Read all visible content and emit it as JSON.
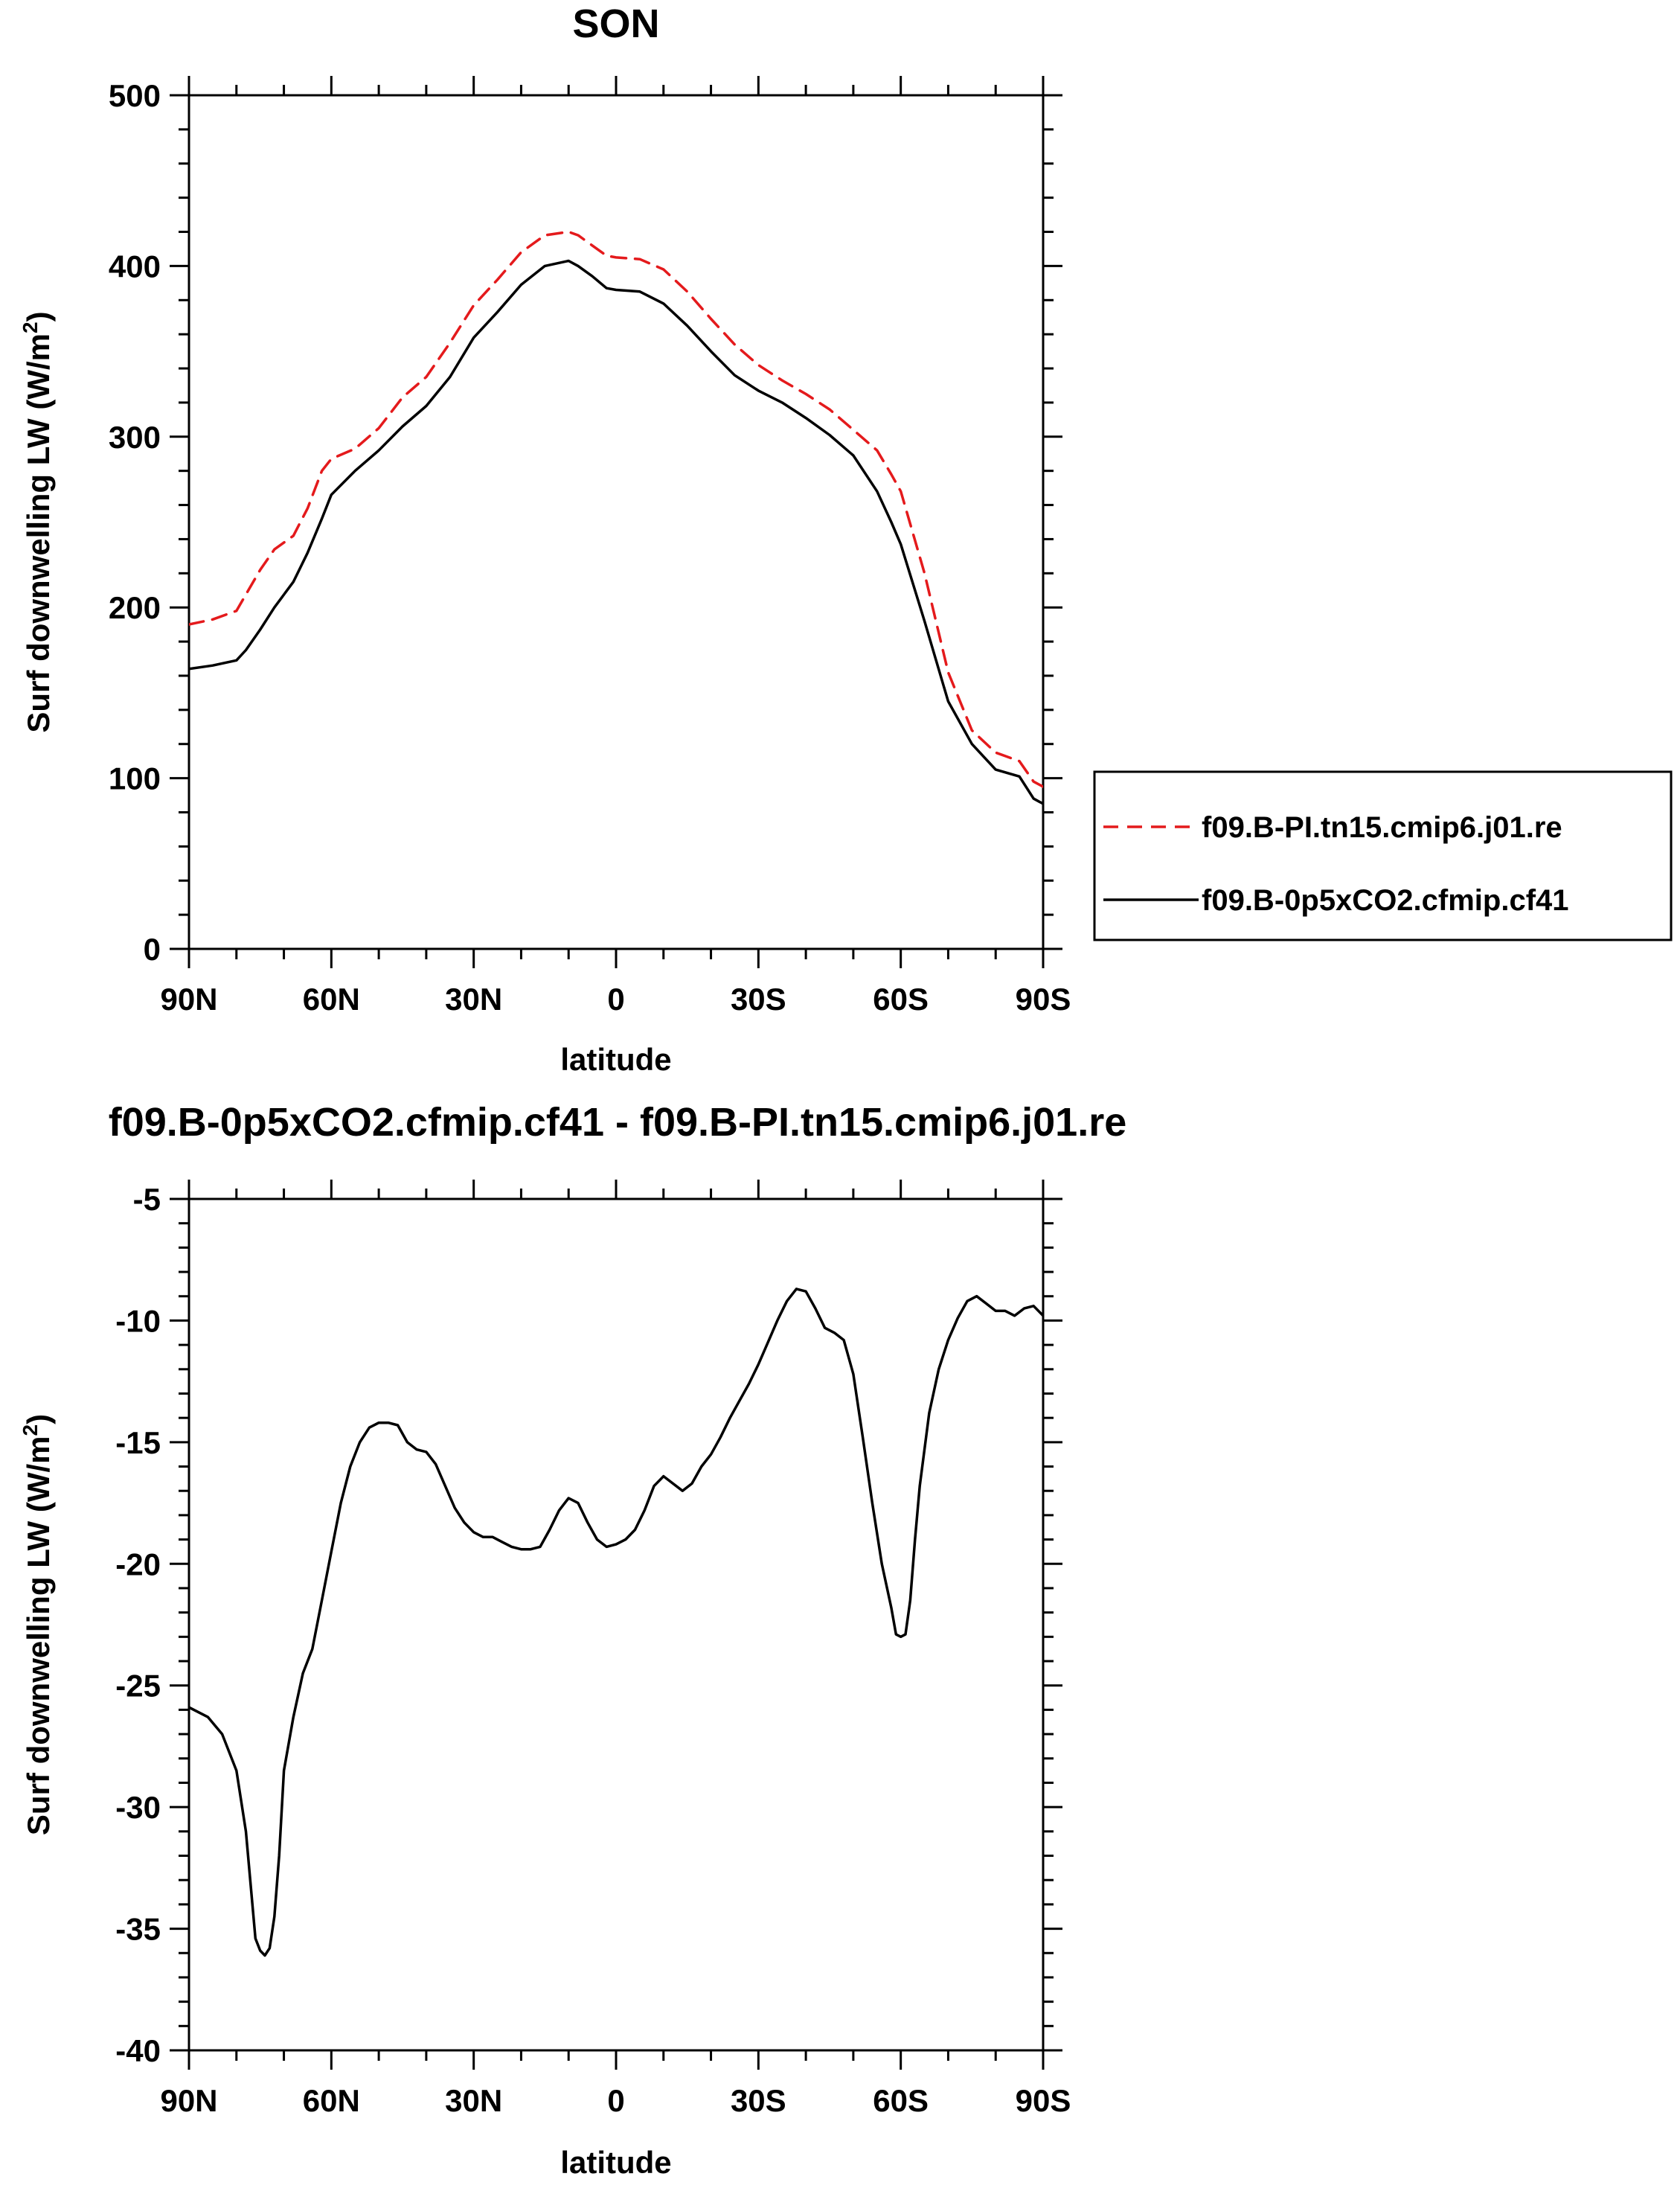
{
  "chart_data": [
    {
      "type": "line",
      "title": "SON",
      "xlabel": "latitude",
      "ylabel": "Surf downwelling LW (W/m²)",
      "ylabel_text": "Surf downwelling LW (W/m",
      "ylabel_sup": "2",
      "ylabel_close": ")",
      "xlim": [
        90,
        -90
      ],
      "ylim": [
        0,
        500
      ],
      "xticks": [
        90,
        60,
        30,
        0,
        -30,
        -60,
        -90
      ],
      "xtick_labels": [
        "90N",
        "60N",
        "30N",
        "0",
        "30S",
        "60S",
        "90S"
      ],
      "yticks": [
        0,
        100,
        200,
        300,
        400,
        500
      ],
      "ytick_labels": [
        "0",
        "100",
        "200",
        "300",
        "400",
        "500"
      ],
      "legend_position": "outside-right",
      "series": [
        {
          "name": "f09.B-PI.tn15.cmip6.j01.re",
          "color": "#e41a1c",
          "dash": "dashed",
          "x": [
            90,
            85,
            80,
            75,
            72,
            68,
            65,
            62,
            60,
            55,
            50,
            45,
            40,
            35,
            30,
            25,
            20,
            15,
            10,
            8,
            5,
            2,
            0,
            -5,
            -10,
            -15,
            -20,
            -25,
            -30,
            -35,
            -40,
            -45,
            -50,
            -55,
            -58,
            -60,
            -65,
            -70,
            -75,
            -80,
            -85,
            -88,
            -90
          ],
          "y": [
            190,
            193,
            198,
            222,
            234,
            242,
            258,
            280,
            287,
            293,
            305,
            323,
            335,
            355,
            377,
            392,
            408,
            418,
            420,
            418,
            412,
            406,
            405,
            404,
            398,
            385,
            369,
            354,
            342,
            333,
            325,
            316,
            304,
            292,
            278,
            268,
            220,
            162,
            128,
            115,
            110,
            98,
            95
          ]
        },
        {
          "name": "f09.B-0p5xCO2.cfmip.cf41",
          "color": "#000000",
          "dash": "solid",
          "x": [
            90,
            85,
            80,
            78,
            75,
            72,
            68,
            65,
            62,
            60,
            55,
            50,
            45,
            40,
            35,
            30,
            25,
            20,
            15,
            10,
            8,
            5,
            2,
            0,
            -5,
            -10,
            -15,
            -20,
            -25,
            -30,
            -35,
            -40,
            -45,
            -50,
            -55,
            -58,
            -60,
            -65,
            -70,
            -75,
            -80,
            -85,
            -88,
            -90
          ],
          "y": [
            164,
            166,
            169,
            175,
            187,
            200,
            215,
            232,
            252,
            266,
            280,
            292,
            306,
            318,
            335,
            358,
            373,
            389,
            400,
            403,
            400,
            394,
            387,
            386,
            385,
            378,
            365,
            350,
            336,
            327,
            320,
            311,
            301,
            289,
            268,
            250,
            237,
            192,
            145,
            120,
            105,
            101,
            88,
            85
          ]
        }
      ]
    },
    {
      "type": "line",
      "title": "f09.B-0p5xCO2.cfmip.cf41 - f09.B-PI.tn15.cmip6.j01.re",
      "xlabel": "latitude",
      "ylabel": "Surf downwelling LW (W/m²)",
      "ylabel_text": "Surf downwelling LW (W/m",
      "ylabel_sup": "2",
      "ylabel_close": ")",
      "xlim": [
        90,
        -90
      ],
      "ylim": [
        -40,
        -5
      ],
      "xticks": [
        90,
        60,
        30,
        0,
        -30,
        -60,
        -90
      ],
      "xtick_labels": [
        "90N",
        "60N",
        "30N",
        "0",
        "30S",
        "60S",
        "90S"
      ],
      "yticks": [
        -40,
        -35,
        -30,
        -25,
        -20,
        -15,
        -10,
        -5
      ],
      "ytick_labels": [
        "-40",
        "-35",
        "-30",
        "-25",
        "-20",
        "-15",
        "-10",
        "-5"
      ],
      "series": [
        {
          "name": "f09.B-0p5xCO2.cfmip.cf41 - f09.B-PI.tn15.cmip6.j01.re",
          "color": "#000000",
          "dash": "solid",
          "x": [
            90,
            86,
            83,
            80,
            78,
            77,
            76,
            75,
            74,
            73,
            72,
            71,
            70,
            68,
            66,
            64,
            62,
            60,
            58,
            56,
            54,
            52,
            50,
            48,
            46,
            44,
            42,
            40,
            38,
            36,
            34,
            32,
            30,
            28,
            26,
            24,
            22,
            20,
            18,
            16,
            14,
            12,
            10,
            8,
            6,
            4,
            2,
            0,
            -2,
            -4,
            -6,
            -8,
            -10,
            -12,
            -14,
            -16,
            -18,
            -20,
            -22,
            -24,
            -26,
            -28,
            -30,
            -32,
            -34,
            -36,
            -38,
            -40,
            -42,
            -44,
            -46,
            -48,
            -50,
            -52,
            -54,
            -56,
            -58,
            -59,
            -60,
            -61,
            -62,
            -63,
            -64,
            -66,
            -68,
            -70,
            -72,
            -74,
            -76,
            -78,
            -80,
            -82,
            -84,
            -86,
            -88,
            -90
          ],
          "y": [
            -25.9,
            -26.3,
            -27.0,
            -28.5,
            -31.0,
            -33.2,
            -35.4,
            -35.9,
            -36.1,
            -35.8,
            -34.5,
            -32.0,
            -28.5,
            -26.3,
            -24.5,
            -23.5,
            -21.5,
            -19.5,
            -17.5,
            -16.0,
            -15.0,
            -14.4,
            -14.2,
            -14.2,
            -14.3,
            -15.0,
            -15.3,
            -15.4,
            -15.9,
            -16.8,
            -17.7,
            -18.3,
            -18.7,
            -18.9,
            -18.9,
            -19.1,
            -19.3,
            -19.4,
            -19.4,
            -19.3,
            -18.6,
            -17.8,
            -17.3,
            -17.5,
            -18.3,
            -19.0,
            -19.3,
            -19.2,
            -19.0,
            -18.6,
            -17.8,
            -16.8,
            -16.4,
            -16.7,
            -17.0,
            -16.7,
            -16.0,
            -15.5,
            -14.8,
            -14.0,
            -13.3,
            -12.6,
            -11.8,
            -10.9,
            -10.0,
            -9.2,
            -8.7,
            -8.8,
            -9.5,
            -10.3,
            -10.5,
            -10.8,
            -12.2,
            -14.8,
            -17.5,
            -20.0,
            -21.8,
            -22.9,
            -23.0,
            -22.9,
            -21.5,
            -19.0,
            -16.8,
            -13.8,
            -12.0,
            -10.8,
            -9.9,
            -9.2,
            -9.0,
            -9.3,
            -9.6,
            -9.6,
            -9.8,
            -9.5,
            -9.4,
            -9.8
          ]
        }
      ]
    }
  ]
}
